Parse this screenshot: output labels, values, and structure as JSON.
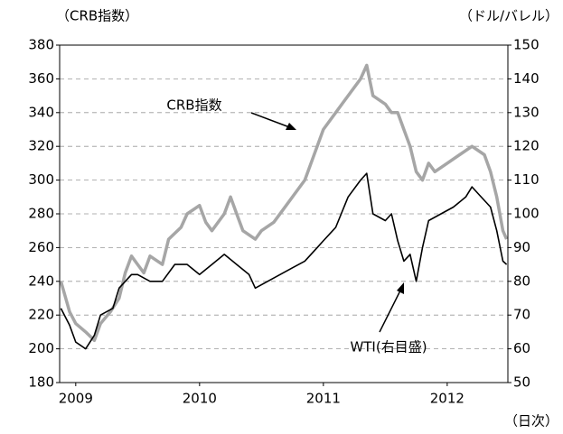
{
  "chart_data": {
    "type": "line",
    "ylabel": "（CRB指数）",
    "y2label": "（ドル/バレル）",
    "xlabel": "（日次）",
    "xlim": [
      2008.87,
      2012.49
    ],
    "xticks": [
      2009,
      2010,
      2011,
      2012
    ],
    "ylim": [
      180,
      380
    ],
    "yticks": [
      180,
      200,
      220,
      240,
      260,
      280,
      300,
      320,
      340,
      360,
      380
    ],
    "y2lim": [
      50,
      150
    ],
    "y2ticks": [
      50,
      60,
      70,
      80,
      90,
      100,
      110,
      120,
      130,
      140,
      150
    ],
    "grid": true,
    "series": [
      {
        "name": "CRB指数",
        "color": "#a6a6a6",
        "x": [
          2008.88,
          2008.95,
          2009.0,
          2009.08,
          2009.15,
          2009.2,
          2009.28,
          2009.35,
          2009.4,
          2009.45,
          2009.5,
          2009.55,
          2009.6,
          2009.7,
          2009.75,
          2009.85,
          2009.9,
          2010.0,
          2010.05,
          2010.1,
          2010.2,
          2010.25,
          2010.3,
          2010.35,
          2010.45,
          2010.5,
          2010.6,
          2010.7,
          2010.8,
          2010.85,
          2010.95,
          2011.0,
          2011.1,
          2011.2,
          2011.3,
          2011.35,
          2011.4,
          2011.5,
          2011.55,
          2011.6,
          2011.65,
          2011.7,
          2011.75,
          2011.8,
          2011.85,
          2011.9,
          2012.0,
          2012.1,
          2012.2,
          2012.3,
          2012.35,
          2012.4,
          2012.45,
          2012.48
        ],
        "values": [
          240,
          222,
          215,
          210,
          205,
          215,
          222,
          230,
          245,
          255,
          250,
          245,
          255,
          250,
          265,
          272,
          280,
          285,
          275,
          270,
          280,
          290,
          280,
          270,
          265,
          270,
          275,
          285,
          295,
          300,
          320,
          330,
          340,
          350,
          360,
          368,
          350,
          345,
          340,
          340,
          330,
          320,
          305,
          300,
          310,
          305,
          310,
          315,
          320,
          315,
          305,
          290,
          270,
          265
        ]
      },
      {
        "name": "WTI(右目盛)",
        "color": "#000000",
        "axis": "y2",
        "x": [
          2008.88,
          2008.95,
          2009.0,
          2009.08,
          2009.15,
          2009.2,
          2009.3,
          2009.35,
          2009.45,
          2009.5,
          2009.6,
          2009.7,
          2009.8,
          2009.9,
          2010.0,
          2010.1,
          2010.2,
          2010.3,
          2010.4,
          2010.45,
          2010.55,
          2010.65,
          2010.75,
          2010.85,
          2010.95,
          2011.0,
          2011.1,
          2011.2,
          2011.3,
          2011.35,
          2011.4,
          2011.5,
          2011.55,
          2011.6,
          2011.65,
          2011.7,
          2011.75,
          2011.8,
          2011.85,
          2011.95,
          2012.05,
          2012.15,
          2012.2,
          2012.25,
          2012.35,
          2012.4,
          2012.45,
          2012.48
        ],
        "values": [
          72,
          67,
          62,
          60,
          64,
          70,
          72,
          78,
          82,
          82,
          80,
          80,
          85,
          85,
          82,
          85,
          88,
          85,
          82,
          78,
          80,
          82,
          84,
          86,
          90,
          92,
          96,
          105,
          110,
          112,
          100,
          98,
          100,
          92,
          86,
          88,
          80,
          90,
          98,
          100,
          102,
          105,
          108,
          106,
          102,
          95,
          86,
          85
        ]
      }
    ]
  }
}
